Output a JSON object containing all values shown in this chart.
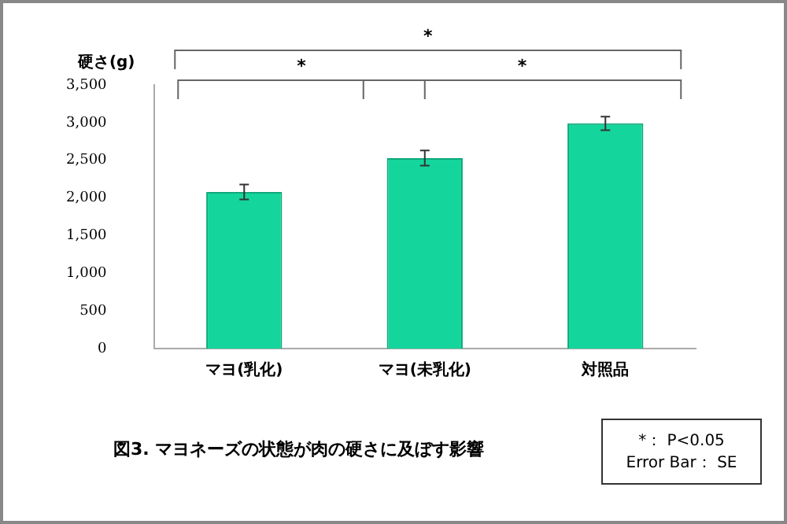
{
  "chart_data": {
    "type": "bar",
    "title": "図3. マヨネーズの状態が肉の硬さに及ぼす影響",
    "ylabel": "硬さ(g)",
    "categories": [
      "マヨ(乳化)",
      "マヨ(未乳化)",
      "対照品"
    ],
    "values": [
      2080,
      2530,
      2990
    ],
    "errors": [
      100,
      100,
      90
    ],
    "color": "#14d69c",
    "ylim": [
      0,
      3500
    ],
    "yticks": [
      {
        "value": 0,
        "label": "0"
      },
      {
        "value": 500,
        "label": "500"
      },
      {
        "value": 1000,
        "label": "1,000"
      },
      {
        "value": 1500,
        "label": "1,500"
      },
      {
        "value": 2000,
        "label": "2,000"
      },
      {
        "value": 2500,
        "label": "2,500"
      },
      {
        "value": 3000,
        "label": "3,000"
      },
      {
        "value": 3500,
        "label": "3,500"
      }
    ],
    "grid": false,
    "legend": false,
    "annotations": [
      "*",
      "*",
      "*",
      "*： P<0.05",
      "Error Bar： SE"
    ]
  }
}
